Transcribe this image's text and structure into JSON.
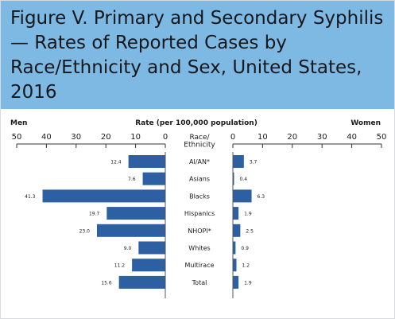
{
  "figure": {
    "title": "Figure V. Primary and Secondary Syphilis — Rates of Reported Cases by Race/Ethnicity and Sex, United States, 2016"
  },
  "chart_data": {
    "type": "bar",
    "orientation": "horizontal",
    "layout": "back-to-back",
    "left_header": "Men",
    "right_header": "Women",
    "axis_title": "Rate (per 100,000 population)",
    "category_header": "Race/ Ethnicity",
    "xlim": [
      0,
      50
    ],
    "ticks": [
      "50",
      "40",
      "30",
      "20",
      "10",
      "0"
    ],
    "right_ticks": [
      "0",
      "10",
      "20",
      "30",
      "40",
      "50"
    ],
    "grid": false,
    "categories": [
      "AI/AN*",
      "Asians",
      "Blacks",
      "Hispanics",
      "NHOPI*",
      "Whites",
      "Multirace",
      "Total"
    ],
    "series": [
      {
        "name": "Men",
        "values": [
          12.4,
          7.6,
          41.3,
          19.7,
          23.0,
          9.0,
          11.2,
          15.6
        ],
        "labels": [
          "12.4",
          "7.6",
          "41.3",
          "19.7",
          "23.0",
          "9.0",
          "11.2",
          "15.6"
        ]
      },
      {
        "name": "Women",
        "values": [
          3.7,
          0.4,
          6.3,
          1.9,
          2.5,
          0.9,
          1.2,
          1.9
        ],
        "labels": [
          "3.7",
          "0.4",
          "6.3",
          "1.9",
          "2.5",
          "0.9",
          "1.2",
          "1.9"
        ]
      }
    ],
    "bar_color": "#2d5fa3"
  }
}
